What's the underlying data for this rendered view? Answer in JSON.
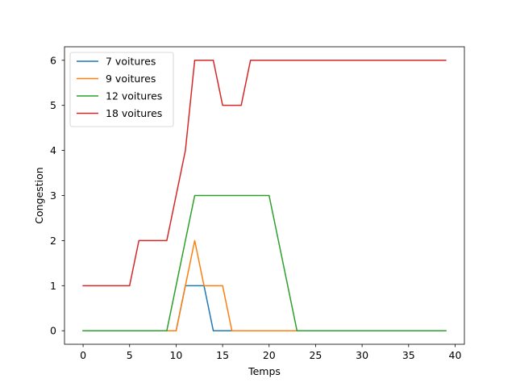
{
  "chart_data": {
    "type": "line",
    "xlabel": "Temps",
    "ylabel": "Congestion",
    "xlim": [
      -2,
      41
    ],
    "ylim": [
      -0.3,
      6.3
    ],
    "xticks": [
      0,
      5,
      10,
      15,
      20,
      25,
      30,
      35,
      40
    ],
    "yticks": [
      0,
      1,
      2,
      3,
      4,
      5,
      6
    ],
    "grid": false,
    "legend_position": "top-left",
    "x": [
      0,
      1,
      2,
      3,
      4,
      5,
      6,
      7,
      8,
      9,
      10,
      11,
      12,
      13,
      14,
      15,
      16,
      17,
      18,
      19,
      20,
      21,
      22,
      23,
      24,
      25,
      26,
      27,
      28,
      29,
      30,
      31,
      32,
      33,
      34,
      35,
      36,
      37,
      38,
      39
    ],
    "series": [
      {
        "name": "7 voitures",
        "color": "#1f77b4",
        "values": [
          0,
          0,
          0,
          0,
          0,
          0,
          0,
          0,
          0,
          0,
          0,
          1,
          1,
          1,
          0,
          0,
          0,
          0,
          0,
          0,
          0,
          0,
          0,
          0,
          0,
          0,
          0,
          0,
          0,
          0,
          0,
          0,
          0,
          0,
          0,
          0,
          0,
          0,
          0,
          0
        ]
      },
      {
        "name": "9 voitures",
        "color": "#ff7f0e",
        "values": [
          0,
          0,
          0,
          0,
          0,
          0,
          0,
          0,
          0,
          0,
          0,
          1,
          2,
          1,
          1,
          1,
          0,
          0,
          0,
          0,
          0,
          0,
          0,
          0,
          0,
          0,
          0,
          0,
          0,
          0,
          0,
          0,
          0,
          0,
          0,
          0,
          0,
          0,
          0,
          0
        ]
      },
      {
        "name": "12 voitures",
        "color": "#2ca02c",
        "values": [
          0,
          0,
          0,
          0,
          0,
          0,
          0,
          0,
          0,
          0,
          1,
          2,
          3,
          3,
          3,
          3,
          3,
          3,
          3,
          3,
          3,
          2,
          1,
          0,
          0,
          0,
          0,
          0,
          0,
          0,
          0,
          0,
          0,
          0,
          0,
          0,
          0,
          0,
          0,
          0
        ]
      },
      {
        "name": "18 voitures",
        "color": "#d62728",
        "values": [
          1,
          1,
          1,
          1,
          1,
          1,
          2,
          2,
          2,
          2,
          3,
          4,
          6,
          6,
          6,
          5,
          5,
          5,
          6,
          6,
          6,
          6,
          6,
          6,
          6,
          6,
          6,
          6,
          6,
          6,
          6,
          6,
          6,
          6,
          6,
          6,
          6,
          6,
          6,
          6
        ]
      }
    ]
  }
}
